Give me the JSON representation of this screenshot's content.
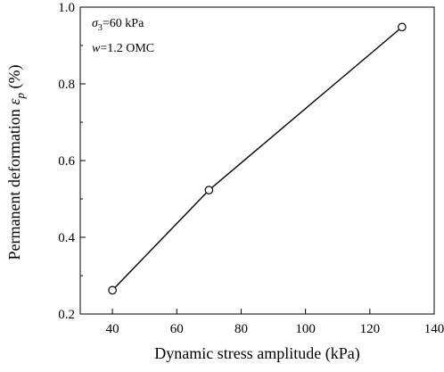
{
  "chart_data": {
    "type": "line",
    "xlabel": "Dynamic stress amplitude (kPa)",
    "ylabel": {
      "main": "Permanent deformation ",
      "symbol": "ε",
      "subscript": "p",
      "unit": " (%)"
    },
    "xlim": [
      30,
      140
    ],
    "ylim": [
      0.2,
      1.0
    ],
    "xticks": [
      40,
      60,
      80,
      100,
      120,
      140
    ],
    "yticks": [
      0.2,
      0.4,
      0.6,
      0.8,
      1.0
    ],
    "xtick_labels": [
      "40",
      "60",
      "80",
      "100",
      "120",
      "140"
    ],
    "ytick_labels": [
      "0.2",
      "0.4",
      "0.6",
      "0.8",
      "1.0"
    ],
    "series": [
      {
        "x": [
          40,
          70,
          130
        ],
        "y": [
          0.262,
          0.523,
          0.948
        ],
        "marker": "open-circle",
        "color": "#000000"
      }
    ],
    "annotations": [
      {
        "symbol": "σ",
        "subscript": "3",
        "text": "=60 kPa"
      },
      {
        "symbol": "w",
        "subscript": "",
        "text": "=1.2 OMC"
      }
    ],
    "grid": false,
    "legend": false
  }
}
